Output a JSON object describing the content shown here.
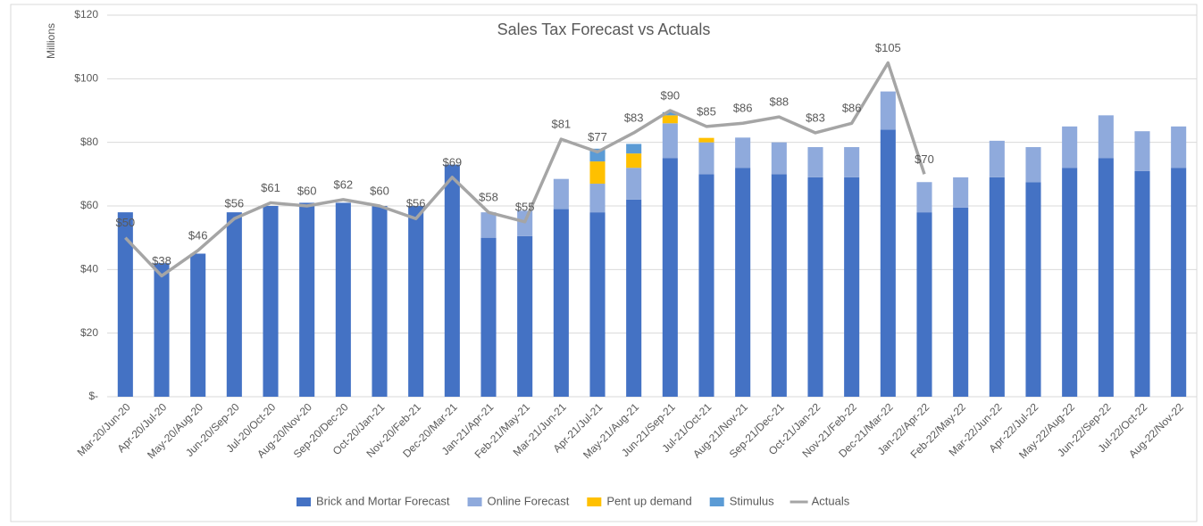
{
  "chart_data": {
    "type": "bar",
    "title": "Sales Tax Forecast vs Actuals",
    "y_label": "Millions",
    "categories": [
      "Mar-20/Jun-20",
      "Apr-20/Jul-20",
      "May-20/Aug-20",
      "Jun-20/Sep-20",
      "Jul-20/Oct-20",
      "Aug-20/Nov-20",
      "Sep-20/Dec-20",
      "Oct-20/Jan-21",
      "Nov-20/Feb-21",
      "Dec-20/Mar-21",
      "Jan-21/Apr-21",
      "Feb-21/May-21",
      "Mar-21/Jun-21",
      "Apr-21/Jul-21",
      "May-21/Aug-21",
      "Jun-21/Sep-21",
      "Jul-21/Oct-21",
      "Aug-21/Nov-21",
      "Sep-21/Dec-21",
      "Oct-21/Jan-22",
      "Nov-21/Feb-22",
      "Dec-21/Mar-22",
      "Jan-22/Apr-22",
      "Feb-22/May-22",
      "Mar-22/Jun-22",
      "Apr-22/Jul-22",
      "May-22/Aug-22",
      "Jun-22/Sep-22",
      "Jul-22/Oct-22",
      "Aug-22/Nov-22"
    ],
    "series": [
      {
        "name": "Brick and Mortar Forecast",
        "color": "#4472c4",
        "stacked": true,
        "values": [
          58,
          42,
          45,
          58,
          60,
          61,
          61,
          60,
          60,
          73,
          50,
          50.5,
          59,
          58,
          62,
          75,
          70,
          72,
          70,
          69,
          69,
          84,
          58,
          59.5,
          69,
          67.5,
          72,
          75,
          71,
          72
        ]
      },
      {
        "name": "Online Forecast",
        "color": "#8faadc",
        "stacked": true,
        "values": [
          0,
          0,
          0,
          0,
          0,
          0,
          0,
          0,
          0,
          0,
          8,
          8,
          9.5,
          9,
          10,
          11,
          10,
          9.5,
          10,
          9.5,
          9.5,
          12,
          9.5,
          9.5,
          11.5,
          11,
          13,
          13.5,
          12.5,
          13
        ]
      },
      {
        "name": "Pent up demand",
        "color": "#ffc000",
        "stacked": true,
        "values": [
          0,
          0,
          0,
          0,
          0,
          0,
          0,
          0,
          0,
          0,
          0,
          0,
          0,
          7,
          4.5,
          2.5,
          1.4,
          0,
          0,
          0,
          0,
          0,
          0,
          0,
          0,
          0,
          0,
          0,
          0,
          0
        ]
      },
      {
        "name": "Stimulus",
        "color": "#5b9bd5",
        "stacked": true,
        "values": [
          0,
          0,
          0,
          0,
          0,
          0,
          0,
          0,
          0,
          0,
          0,
          0,
          0,
          4,
          3,
          1,
          0,
          0,
          0,
          0,
          0,
          0,
          0,
          0,
          0,
          0,
          0,
          0,
          0,
          0
        ]
      },
      {
        "name": "Actuals",
        "color": "#a5a5a5",
        "kind": "line",
        "values": [
          50,
          38,
          46,
          56,
          61,
          60,
          62,
          60,
          56,
          69,
          58,
          55,
          81,
          77,
          83,
          90,
          85,
          86,
          88,
          83,
          86,
          105,
          70,
          null,
          null,
          null,
          null,
          null,
          null,
          null
        ],
        "value_labels": [
          "$50",
          "$38",
          "$46",
          "$56",
          "$61",
          "$60",
          "$62",
          "$60",
          "$56",
          "$69",
          "$58",
          "$55",
          "$81",
          "$77",
          "$83",
          "$90",
          "$85",
          "$86",
          "$88",
          "$83",
          "$86",
          "$105",
          "$70",
          null,
          null,
          null,
          null,
          null,
          null,
          null
        ]
      }
    ],
    "ylim": [
      0,
      120
    ],
    "yticks": [
      {
        "value": 0,
        "label": "$-"
      },
      {
        "value": 20,
        "label": "$20"
      },
      {
        "value": 40,
        "label": "$40"
      },
      {
        "value": 60,
        "label": "$60"
      },
      {
        "value": 80,
        "label": "$80"
      },
      {
        "value": 100,
        "label": "$100"
      },
      {
        "value": 120,
        "label": "$120"
      }
    ],
    "grid": true,
    "legend": "bottom"
  }
}
